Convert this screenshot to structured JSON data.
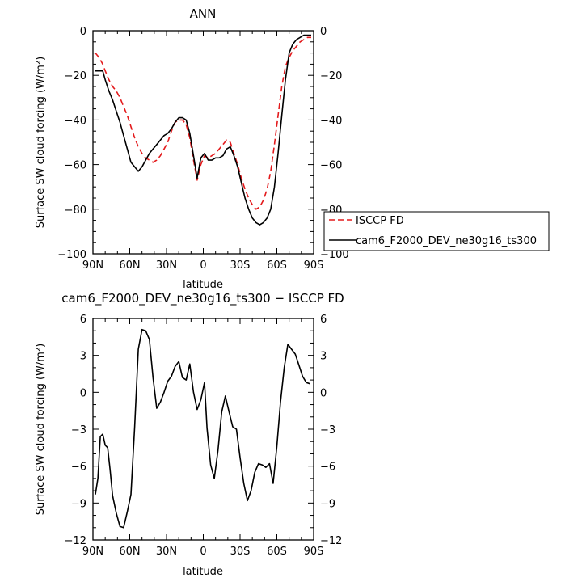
{
  "chart_data": [
    {
      "type": "line",
      "title": "ANN",
      "xlabel": "latitude",
      "ylabel": "Surface SW cloud forcing (W/m²)",
      "xlim": [
        90,
        -90
      ],
      "ylim": [
        -100,
        0
      ],
      "x_tick_labels": [
        "90N",
        "60N",
        "30N",
        "0",
        "30S",
        "60S",
        "90S"
      ],
      "y_tick_labels": [
        "0",
        "−20",
        "−40",
        "−60",
        "−80",
        "−100"
      ],
      "legend_placement": "right",
      "series": [
        {
          "name": "ISCCP FD",
          "color": "#e31a1c",
          "style": "dashed",
          "x": [
            88,
            85,
            82,
            80,
            77,
            74,
            71,
            68,
            65,
            62,
            59,
            56,
            53,
            50,
            47,
            44,
            41,
            38,
            35,
            32,
            29,
            26,
            23,
            20,
            17,
            14,
            11,
            8,
            5,
            2,
            -1,
            -4,
            -7,
            -10,
            -13,
            -16,
            -19,
            -22,
            -25,
            -28,
            -31,
            -34,
            -37,
            -40,
            -43,
            -46,
            -49,
            -52,
            -55,
            -58,
            -61,
            -64,
            -67,
            -70,
            -73,
            -76,
            -79,
            -82,
            -85,
            -88
          ],
          "y": [
            -10,
            -12,
            -15,
            -18,
            -22,
            -25,
            -27,
            -30,
            -34,
            -38,
            -43,
            -48,
            -52,
            -55,
            -57,
            -58,
            -59,
            -58,
            -56,
            -53,
            -50,
            -45,
            -41,
            -40,
            -40,
            -42,
            -48,
            -58,
            -67,
            -60,
            -56,
            -57,
            -56,
            -55,
            -53,
            -51,
            -49,
            -50,
            -55,
            -60,
            -66,
            -71,
            -75,
            -78,
            -80,
            -79,
            -76,
            -71,
            -63,
            -51,
            -38,
            -25,
            -16,
            -12,
            -9,
            -7,
            -5,
            -4,
            -3,
            -3
          ]
        },
        {
          "name": "cam6_F2000_DEV_ne30g16_ts300",
          "color": "#000000",
          "style": "solid",
          "x": [
            88,
            85,
            82,
            80,
            77,
            74,
            71,
            68,
            65,
            62,
            59,
            56,
            53,
            50,
            47,
            44,
            41,
            38,
            35,
            32,
            29,
            26,
            23,
            20,
            17,
            14,
            11,
            8,
            5,
            2,
            -1,
            -4,
            -7,
            -10,
            -13,
            -16,
            -19,
            -22,
            -25,
            -28,
            -31,
            -34,
            -37,
            -40,
            -43,
            -46,
            -49,
            -52,
            -55,
            -58,
            -61,
            -64,
            -67,
            -70,
            -73,
            -76,
            -79,
            -82,
            -85,
            -88
          ],
          "y": [
            -18,
            -18,
            -18,
            -22,
            -27,
            -31,
            -36,
            -41,
            -47,
            -53,
            -59,
            -61,
            -63,
            -61,
            -58,
            -55,
            -53,
            -51,
            -49,
            -47,
            -46,
            -44,
            -41,
            -39,
            -39,
            -40,
            -46,
            -56,
            -66,
            -57,
            -55,
            -58,
            -58,
            -57,
            -57,
            -56,
            -53,
            -52,
            -56,
            -61,
            -68,
            -75,
            -80,
            -84,
            -86,
            -87,
            -86,
            -84,
            -80,
            -70,
            -55,
            -38,
            -22,
            -10,
            -6,
            -4,
            -3,
            -2,
            -2,
            -2
          ]
        }
      ]
    },
    {
      "type": "line",
      "title": "cam6_F2000_DEV_ne30g16_ts300 − ISCCP FD",
      "xlabel": "latitude",
      "ylabel": "Surface SW cloud forcing (W/m²)",
      "xlim": [
        90,
        -90
      ],
      "ylim": [
        -12,
        6
      ],
      "x_tick_labels": [
        "90N",
        "60N",
        "30N",
        "0",
        "30S",
        "60S",
        "90S"
      ],
      "y_tick_labels": [
        "6",
        "3",
        "0",
        "−3",
        "−6",
        "−9",
        "−12"
      ],
      "series": [
        {
          "color": "#000000",
          "style": "solid",
          "x": [
            88,
            86,
            84,
            82,
            80,
            78,
            76,
            74,
            71,
            68,
            65,
            62,
            59,
            56,
            53,
            50,
            47,
            44,
            41,
            38,
            35,
            32,
            29,
            26,
            23,
            20,
            17,
            14,
            11,
            8,
            5,
            2,
            -1,
            -3,
            -6,
            -9,
            -12,
            -15,
            -18,
            -21,
            -24,
            -27,
            -30,
            -33,
            -36,
            -39,
            -42,
            -45,
            -48,
            -51,
            -54,
            -57,
            -60,
            -63,
            -66,
            -69,
            -72,
            -75,
            -78,
            -81,
            -84,
            -87
          ],
          "y": [
            -8.3,
            -7.0,
            -3.6,
            -3.4,
            -4.3,
            -4.5,
            -6.3,
            -8.4,
            -9.8,
            -10.9,
            -11.0,
            -9.7,
            -8.3,
            -2.8,
            3.5,
            5.1,
            5.0,
            4.3,
            1.2,
            -1.3,
            -0.8,
            0.0,
            0.9,
            1.3,
            2.1,
            2.5,
            1.2,
            1.0,
            2.3,
            0.0,
            -1.4,
            -0.6,
            0.8,
            -2.9,
            -5.9,
            -7.0,
            -4.7,
            -1.6,
            -0.3,
            -1.6,
            -2.8,
            -3.0,
            -5.3,
            -7.4,
            -8.8,
            -8.0,
            -6.5,
            -5.8,
            -5.9,
            -6.1,
            -5.8,
            -7.4,
            -4.4,
            -0.8,
            2.0,
            3.9,
            3.5,
            3.1,
            2.2,
            1.3,
            0.8,
            0.7
          ]
        }
      ]
    }
  ]
}
